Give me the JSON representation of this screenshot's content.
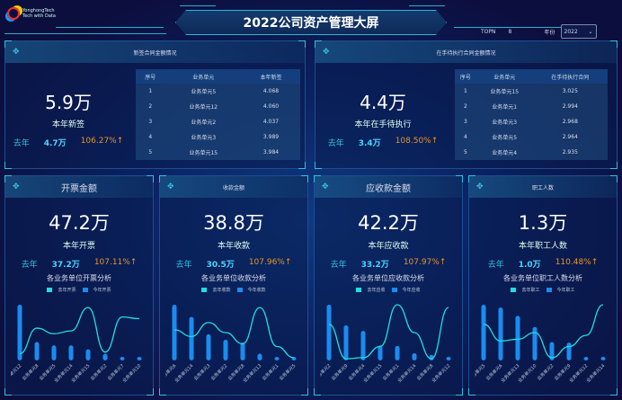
{
  "header": {
    "logo_text": "YonghongTech",
    "logo_sub": "Tech with Data",
    "title": "2022公司资产管理大屏",
    "topn_label": "TOPN",
    "topn_value": "8",
    "year_label": "年份",
    "year_value": "2022"
  },
  "colors": {
    "accent": "#29c4e0",
    "bar": "#1a8cf0",
    "line": "#1ee0e0",
    "growth": "#e5942a",
    "last_year": "#4cd4ff"
  },
  "top_panels": [
    {
      "title": "新签合同金额情况",
      "big": "5.9万",
      "label": "本年新签",
      "last_label": "去年",
      "last_value": "4.7万",
      "growth": "106.27%↑",
      "table": {
        "headers": [
          "序号",
          "业务单元",
          "本年新签"
        ],
        "rows": [
          [
            "1",
            "业务单元5",
            "4.068"
          ],
          [
            "2",
            "业务单元12",
            "4.060"
          ],
          [
            "3",
            "业务单元2",
            "4.037"
          ],
          [
            "4",
            "业务单元3",
            "3.989"
          ],
          [
            "5",
            "业务单元15",
            "3.984"
          ]
        ]
      }
    },
    {
      "title": "在手待执行合同金额情况",
      "big": "4.4万",
      "label": "本年在手待执行",
      "last_label": "去年",
      "last_value": "3.4万",
      "growth": "108.50%↑",
      "table": {
        "headers": [
          "序号",
          "业务单元",
          "在手待执行合同"
        ],
        "rows": [
          [
            "1",
            "业务单元15",
            "3.025"
          ],
          [
            "2",
            "业务单元1",
            "2.994"
          ],
          [
            "3",
            "业务单元3",
            "2.968"
          ],
          [
            "4",
            "业务单元5",
            "2.964"
          ],
          [
            "5",
            "业务单元4",
            "2.935"
          ]
        ]
      }
    }
  ],
  "cards": [
    {
      "title": "开票金额",
      "big": "47.2万",
      "label": "本年开票",
      "last_label": "去年",
      "last_value": "37.2万",
      "growth": "107.11%↑",
      "chart_title": "各业务单位开票分析",
      "legend": [
        "去年开票",
        "今年开票"
      ]
    },
    {
      "title": "收款金额",
      "big": "38.8万",
      "label": "本年收款",
      "last_label": "去年",
      "last_value": "30.5万",
      "growth": "107.96%↑",
      "chart_title": "各业务单位收款分析",
      "legend": [
        "去年收款",
        "今年收款"
      ]
    },
    {
      "title": "应收款金额",
      "big": "42.2万",
      "label": "本年应收款",
      "last_label": "去年",
      "last_value": "33.2万",
      "growth": "107.97%↑",
      "chart_title": "各业务单位应收款分析",
      "legend": [
        "去年应收",
        "今年应收"
      ]
    },
    {
      "title": "职工人数",
      "big": "1.3万",
      "label": "本年职工人数",
      "last_label": "去年",
      "last_value": "1.0万",
      "growth": "110.48%↑",
      "chart_title": "各业务单位职工人数分析",
      "legend": [
        "去年职工",
        "今年职工"
      ]
    }
  ],
  "chart_data": [
    {
      "type": "bar",
      "categories": [
        "业务单元12",
        "业务单元8",
        "业务单元5",
        "业务单元14",
        "业务单元15",
        "业务单元2",
        "业务单元7",
        "业务单元10"
      ],
      "series": [
        {
          "name": "去年开票",
          "type": "line",
          "values": [
            12,
            58,
            48,
            53,
            95,
            15,
            78,
            75
          ]
        },
        {
          "name": "今年开票",
          "values": [
            100,
            33,
            27,
            27,
            20,
            12,
            3,
            2
          ]
        }
      ]
    },
    {
      "type": "bar",
      "categories": [
        "业务单元6",
        "业务单元14",
        "业务单元3",
        "业务单元2",
        "业务单元8",
        "业务单元13",
        "业务单元1",
        "业务单元5"
      ],
      "series": [
        {
          "name": "去年收款",
          "type": "line",
          "values": [
            55,
            43,
            68,
            50,
            30,
            95,
            25,
            5
          ]
        },
        {
          "name": "今年收款",
          "values": [
            100,
            78,
            47,
            37,
            32,
            12,
            3,
            3
          ]
        }
      ]
    },
    {
      "type": "bar",
      "categories": [
        "业务单元2",
        "业务单元9",
        "业务单元4",
        "业务单元15",
        "业务单元1",
        "业务单元14",
        "业务单元8",
        "业务单元12"
      ],
      "series": [
        {
          "name": "去年应收",
          "type": "line",
          "values": [
            65,
            3,
            5,
            25,
            100,
            50,
            3,
            95
          ]
        },
        {
          "name": "今年应收",
          "values": [
            100,
            63,
            53,
            27,
            26,
            13,
            10,
            3
          ]
        }
      ]
    },
    {
      "type": "bar",
      "categories": [
        "业务单元5",
        "业务单元6",
        "业务单元13",
        "业务单元10",
        "业务单元2",
        "业务单元9",
        "业务单元12",
        "业务单元14"
      ],
      "series": [
        {
          "name": "去年职工",
          "type": "line",
          "values": [
            65,
            35,
            38,
            50,
            5,
            25,
            45,
            100
          ]
        },
        {
          "name": "今年职工",
          "values": [
            100,
            95,
            80,
            60,
            33,
            32,
            5,
            3
          ]
        }
      ]
    }
  ]
}
